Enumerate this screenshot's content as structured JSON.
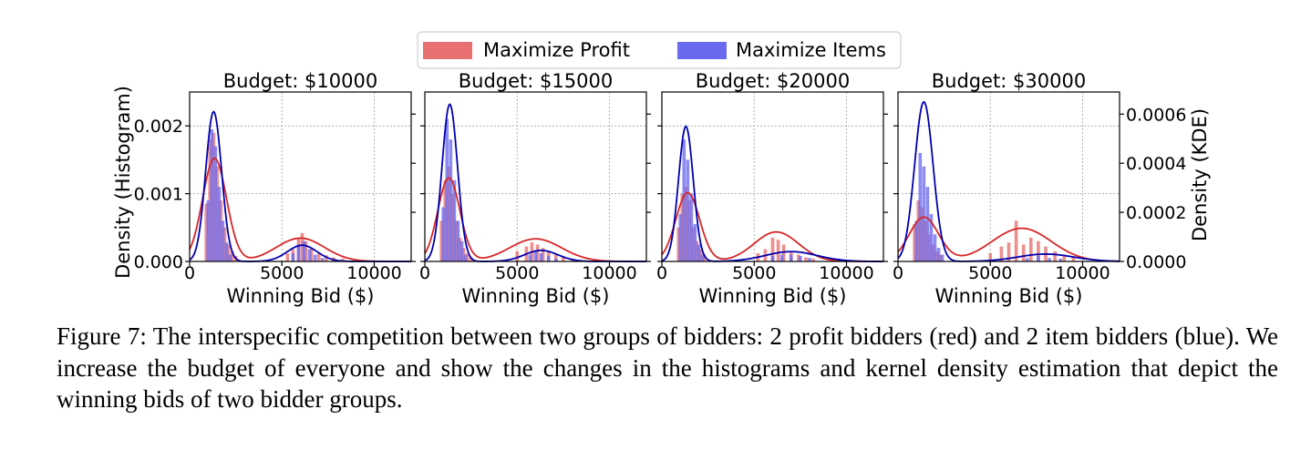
{
  "caption": "Figure 7: The interspecific competition between two groups of bidders: 2 profit bidders (red) and 2 item bidders (blue). We increase the budget of everyone and show the changes in the histograms and kernel density estimation that depict the winning bids of two bidder groups.",
  "legend": {
    "placement": "top-center",
    "entries": [
      {
        "label": "Maximize Profit",
        "color": "#e87070"
      },
      {
        "label": "Maximize Items",
        "color": "#6a6aee"
      }
    ]
  },
  "colors": {
    "profit_hist": "#e87070",
    "items_hist": "#6a6aee",
    "profit_kde": "#d62728",
    "items_kde": "#0000b0",
    "grid": "#b0b0b0"
  },
  "ylabel_left": "Density (Histogram)",
  "ylabel_right": "Density (KDE)",
  "chart_data": [
    {
      "type": "bar",
      "title": "Budget: $10000",
      "xlabel": "Winning Bid ($)",
      "xlim": [
        0,
        12000
      ],
      "ylim": [
        0,
        0.0025
      ],
      "xticks": [
        0,
        5000,
        10000
      ],
      "xtick_labels": [
        "0",
        "5000",
        "10000"
      ],
      "yticks": [
        0,
        0.001,
        0.002
      ],
      "ytick_labels": [
        "0.000",
        "0.001",
        "0.002"
      ],
      "grid": true,
      "profit_hist": {
        "bin_width": 180,
        "x": [
          900,
          1100,
          1300,
          1500,
          1700,
          1900,
          2100,
          2300,
          2500,
          5300,
          5600,
          5900,
          6100,
          6300,
          6600,
          7000,
          7400,
          7800,
          8300
        ],
        "y": [
          0.00085,
          0.0018,
          0.0019,
          0.0014,
          0.0009,
          0.0005,
          0.00025,
          0.00015,
          8e-05,
          0.00012,
          0.00018,
          0.00035,
          0.00042,
          0.0003,
          0.0002,
          0.00012,
          9e-05,
          6e-05,
          4e-05
        ]
      },
      "items_hist": {
        "bin_width": 180,
        "x": [
          1000,
          1200,
          1400,
          1600,
          1800,
          2000,
          2200,
          5600,
          5900,
          6200,
          6500,
          6800,
          7200
        ],
        "y": [
          0.0009,
          0.00195,
          0.0017,
          0.0011,
          0.0006,
          0.00028,
          0.0001,
          0.00012,
          0.00025,
          0.0003,
          0.00018,
          0.0001,
          5e-05
        ]
      },
      "kde": {
        "ylim": [
          0,
          0.00069
        ],
        "profit": {
          "components": [
            {
              "w": 0.00042,
              "mu": 1350,
              "sigma": 650
            },
            {
              "w": 9.5e-05,
              "mu": 6000,
              "sigma": 1300
            }
          ]
        },
        "items": {
          "components": [
            {
              "w": 0.00061,
              "mu": 1300,
              "sigma": 430
            },
            {
              "w": 6.6e-05,
              "mu": 6100,
              "sigma": 800
            }
          ]
        }
      }
    },
    {
      "type": "bar",
      "title": "Budget: $15000",
      "xlabel": "Winning Bid ($)",
      "xlim": [
        0,
        12000
      ],
      "ylim": [
        0,
        0.0025
      ],
      "xticks": [
        0,
        5000,
        10000
      ],
      "xtick_labels": [
        "0",
        "5000",
        "10000"
      ],
      "grid": true,
      "profit_hist": {
        "bin_width": 180,
        "x": [
          900,
          1100,
          1300,
          1500,
          1700,
          1900,
          2100,
          2300,
          2500,
          5000,
          5500,
          5800,
          6100,
          6400,
          6700,
          7100,
          7500,
          8000
        ],
        "y": [
          0.0006,
          0.0012,
          0.0014,
          0.001,
          0.0006,
          0.00035,
          0.0002,
          0.00012,
          6e-05,
          0.00015,
          0.00022,
          0.00028,
          0.00025,
          0.0002,
          0.00015,
          0.0001,
          6e-05,
          4e-05
        ]
      },
      "items_hist": {
        "bin_width": 180,
        "x": [
          1000,
          1200,
          1400,
          1600,
          1800,
          2000,
          2200,
          5700,
          6000,
          6300,
          6700,
          7100
        ],
        "y": [
          0.0008,
          0.0021,
          0.0018,
          0.0012,
          0.0006,
          0.0003,
          0.0001,
          0.0001,
          0.00016,
          0.00012,
          8e-05,
          4e-05
        ]
      },
      "kde": {
        "ylim": [
          0,
          0.00069
        ],
        "profit": {
          "components": [
            {
              "w": 0.00034,
              "mu": 1300,
              "sigma": 600
            },
            {
              "w": 9.2e-05,
              "mu": 6000,
              "sigma": 1400
            }
          ]
        },
        "items": {
          "components": [
            {
              "w": 0.00064,
              "mu": 1350,
              "sigma": 420
            },
            {
              "w": 4.5e-05,
              "mu": 6300,
              "sigma": 900
            }
          ]
        }
      }
    },
    {
      "type": "bar",
      "title": "Budget: $20000",
      "xlabel": "Winning Bid ($)",
      "xlim": [
        0,
        12000
      ],
      "ylim": [
        0,
        0.0025
      ],
      "xticks": [
        0,
        5000,
        10000
      ],
      "xtick_labels": [
        "0",
        "5000",
        "10000"
      ],
      "grid": true,
      "profit_hist": {
        "bin_width": 180,
        "x": [
          900,
          1100,
          1300,
          1500,
          1700,
          1900,
          2100,
          2300,
          5200,
          5600,
          6000,
          6300,
          6600,
          7000,
          7400,
          7800,
          8200
        ],
        "y": [
          0.0005,
          0.001,
          0.0011,
          0.0009,
          0.0005,
          0.0003,
          0.00018,
          0.0001,
          0.00012,
          0.00018,
          0.00035,
          0.00032,
          0.00025,
          0.00015,
          0.0001,
          6e-05,
          4e-05
        ]
      },
      "items_hist": {
        "bin_width": 180,
        "x": [
          1000,
          1200,
          1400,
          1600,
          1800,
          2000,
          2200,
          6000,
          6500,
          7000,
          7500,
          8000
        ],
        "y": [
          0.0007,
          0.0018,
          0.0015,
          0.001,
          0.00055,
          0.00025,
          0.0001,
          8e-05,
          0.0001,
          0.0001,
          8e-05,
          5e-05
        ]
      },
      "kde": {
        "ylim": [
          0,
          0.00069
        ],
        "profit": {
          "components": [
            {
              "w": 0.00028,
              "mu": 1400,
              "sigma": 650
            },
            {
              "w": 0.00012,
              "mu": 6200,
              "sigma": 1200
            }
          ]
        },
        "items": {
          "components": [
            {
              "w": 0.00055,
              "mu": 1300,
              "sigma": 400
            },
            {
              "w": 4e-05,
              "mu": 7000,
              "sigma": 1400
            }
          ]
        }
      }
    },
    {
      "type": "bar",
      "title": "Budget: $30000",
      "xlabel": "Winning Bid ($)",
      "xlim": [
        0,
        12000
      ],
      "ylim": [
        0,
        0.0025
      ],
      "xticks": [
        0,
        5000,
        10000
      ],
      "xtick_labels": [
        "0",
        "5000",
        "10000"
      ],
      "yticks_right": [
        0,
        0.0002,
        0.0004,
        0.0006
      ],
      "ytick_labels_right": [
        "0.0000",
        "0.0002",
        "0.0004",
        "0.0006"
      ],
      "ylim_right": [
        0,
        0.00069
      ],
      "grid": true,
      "profit_hist": {
        "bin_width": 180,
        "x": [
          900,
          1100,
          1300,
          1500,
          1700,
          1900,
          2100,
          2300,
          5000,
          5600,
          6000,
          6400,
          6800,
          7200,
          7600,
          8000,
          8500,
          9000,
          9500
        ],
        "y": [
          0.00055,
          0.0009,
          0.0008,
          0.0006,
          0.0004,
          0.00025,
          0.00015,
          0.0001,
          0.00012,
          0.00022,
          0.00028,
          0.0006,
          0.00025,
          0.00035,
          0.0003,
          0.00022,
          0.00015,
          0.0001,
          6e-05
        ]
      },
      "items_hist": {
        "bin_width": 180,
        "x": [
          1000,
          1200,
          1400,
          1600,
          1800,
          2000,
          2200,
          2400,
          7000,
          7600,
          8200,
          8800
        ],
        "y": [
          0.0006,
          0.0016,
          0.0014,
          0.0011,
          0.0007,
          0.0004,
          0.0002,
          0.0001,
          5e-05,
          8e-05,
          5e-05,
          4e-05
        ]
      },
      "kde": {
        "ylim": [
          0,
          0.00069
        ],
        "profit": {
          "components": [
            {
              "w": 0.00018,
              "mu": 1400,
              "sigma": 800
            },
            {
              "w": 0.000135,
              "mu": 6700,
              "sigma": 1600
            }
          ]
        },
        "items": {
          "components": [
            {
              "w": 0.00065,
              "mu": 1400,
              "sigma": 500
            },
            {
              "w": 3e-05,
              "mu": 8000,
              "sigma": 1500
            }
          ]
        }
      }
    }
  ]
}
